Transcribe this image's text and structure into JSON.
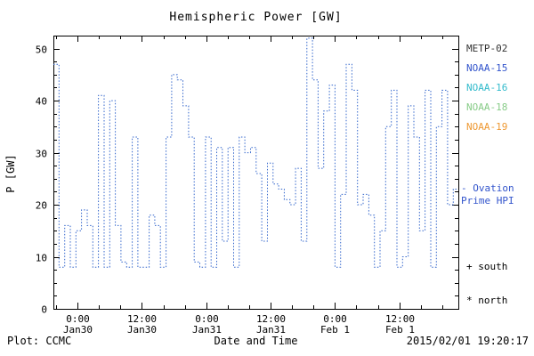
{
  "title": "Hemispheric Power [GW]",
  "ylabel": "P [GW]",
  "xlabel": "Date and Time",
  "footer": {
    "plot_credit": "Plot: CCMC",
    "timestamp": "2015/02/01 19:20:17"
  },
  "legend": {
    "satellites": [
      {
        "label": "METP-02",
        "color": "#333333"
      },
      {
        "label": "NOAA-15",
        "color": "#3355cc"
      },
      {
        "label": "NOAA-16",
        "color": "#33bbcc"
      },
      {
        "label": "NOAA-18",
        "color": "#88cc88"
      },
      {
        "label": "NOAA-19",
        "color": "#ee9933"
      }
    ],
    "ovation": {
      "line1": "- Ovation",
      "line2": "Prime HPI",
      "color": "#3355cc"
    },
    "south_marker": "+ south",
    "north_marker": "* north"
  },
  "chart_data": {
    "type": "line",
    "style": "step-dotted",
    "series_name": "Ovation Prime HPI",
    "color": "#3366cc",
    "title": "Hemispheric Power [GW]",
    "xlabel": "Date and Time",
    "ylabel": "P [GW]",
    "x_unit": "hours since 2015-01-30 00:00",
    "xlim": [
      -4.5,
      71
    ],
    "ylim": [
      0,
      52.5
    ],
    "t_start": -4.5,
    "t_step": 1.05,
    "values": [
      47,
      8,
      16,
      8,
      15,
      19,
      16,
      8,
      41,
      8,
      40,
      16,
      9,
      8,
      33,
      8,
      8,
      18,
      16,
      8,
      33,
      45,
      44,
      39,
      33,
      9,
      8,
      33,
      8,
      31,
      13,
      31,
      8,
      33,
      30,
      31,
      26,
      13,
      28,
      24,
      23,
      21,
      20,
      27,
      13,
      52,
      44,
      27,
      38,
      43,
      8,
      22,
      47,
      42,
      20,
      22,
      18,
      8,
      15,
      35,
      42,
      8,
      10,
      39,
      33,
      15,
      42,
      8,
      35,
      42,
      20,
      23
    ],
    "xticks": [
      {
        "t": 0,
        "label": "0:00",
        "sublabel": "Jan30"
      },
      {
        "t": 12,
        "label": "12:00",
        "sublabel": "Jan30"
      },
      {
        "t": 24,
        "label": "0:00",
        "sublabel": "Jan31"
      },
      {
        "t": 36,
        "label": "12:00",
        "sublabel": "Jan31"
      },
      {
        "t": 48,
        "label": "0:00",
        "sublabel": "Feb 1"
      },
      {
        "t": 60,
        "label": "12:00",
        "sublabel": "Feb 1"
      }
    ],
    "yticks": [
      0,
      10,
      20,
      30,
      40,
      50
    ],
    "grid": false,
    "legend_position": "right-outside"
  }
}
